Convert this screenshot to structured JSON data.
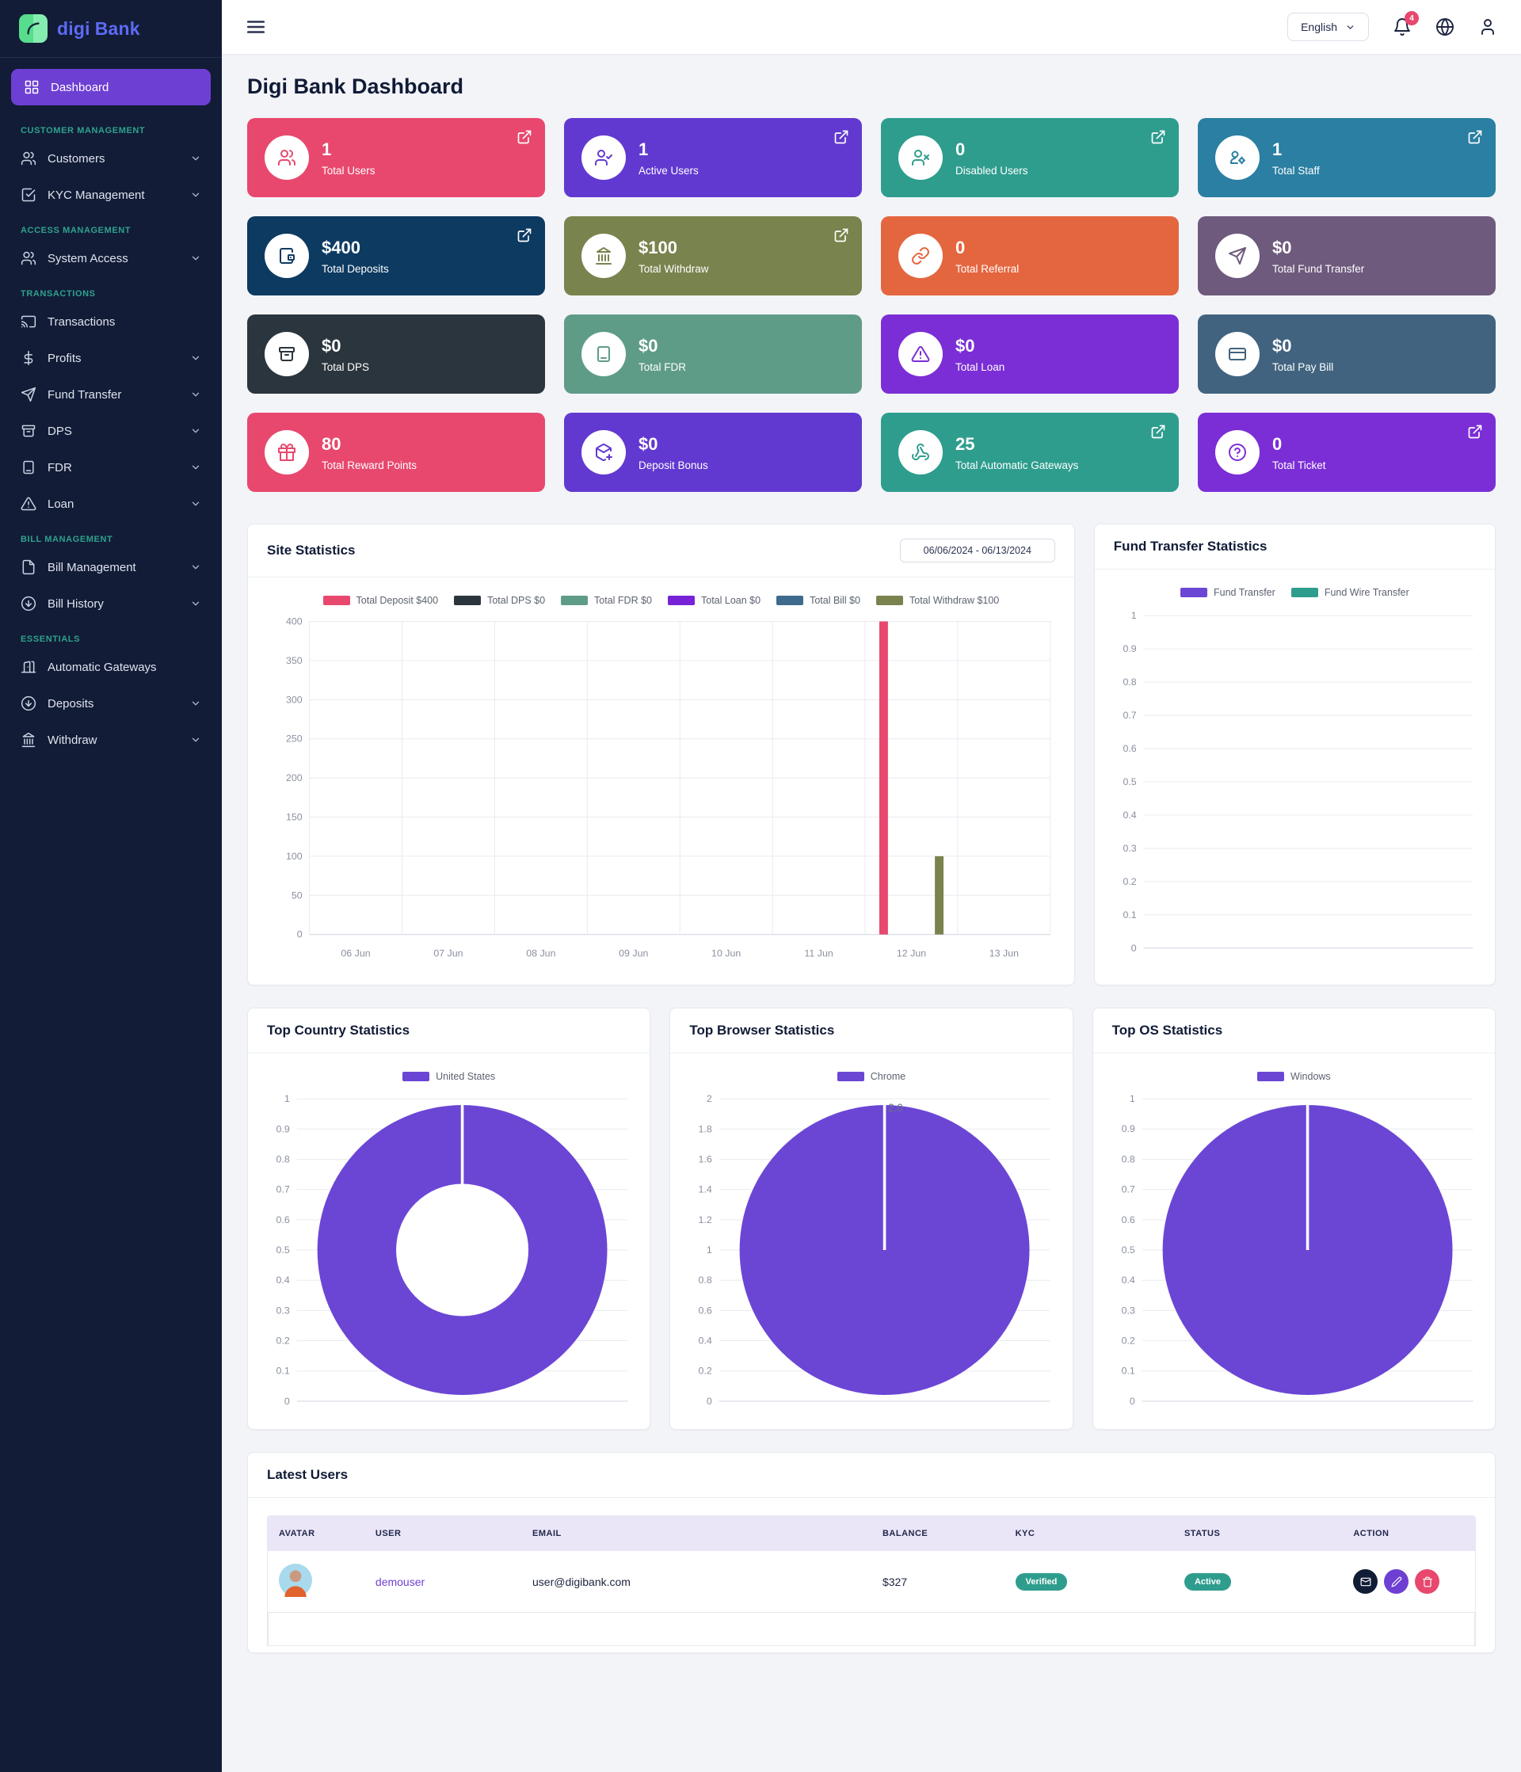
{
  "brand": {
    "logo_light": "digi",
    "logo_bold": "Bank"
  },
  "header": {
    "language_selector": "English",
    "notification_badge": "4"
  },
  "sidebar": {
    "dashboard_label": "Dashboard",
    "sections": [
      {
        "label": "CUSTOMER MANAGEMENT",
        "items": [
          {
            "label": "Customers"
          },
          {
            "label": "KYC Management"
          }
        ]
      },
      {
        "label": "ACCESS MANAGEMENT",
        "items": [
          {
            "label": "System Access"
          }
        ]
      },
      {
        "label": "TRANSACTIONS",
        "items": [
          {
            "label": "Transactions"
          },
          {
            "label": "Profits"
          },
          {
            "label": "Fund Transfer"
          },
          {
            "label": "DPS"
          },
          {
            "label": "FDR"
          },
          {
            "label": "Loan"
          }
        ]
      },
      {
        "label": "BILL MANAGEMENT",
        "items": [
          {
            "label": "Bill Management"
          },
          {
            "label": "Bill History"
          }
        ]
      },
      {
        "label": "ESSENTIALS",
        "items": [
          {
            "label": "Automatic Gateways"
          },
          {
            "label": "Deposits"
          },
          {
            "label": "Withdraw"
          }
        ]
      }
    ]
  },
  "page": {
    "title": "Digi Bank Dashboard"
  },
  "stat_cards": [
    {
      "value": "1",
      "label": "Total Users",
      "color": "#e8486e",
      "icon": "users"
    },
    {
      "value": "1",
      "label": "Active Users",
      "color": "#6239d0",
      "icon": "user-check"
    },
    {
      "value": "0",
      "label": "Disabled Users",
      "color": "#2e9d8e",
      "icon": "user-x"
    },
    {
      "value": "1",
      "label": "Total Staff",
      "color": "#2a7fa2",
      "icon": "user-cog"
    },
    {
      "value": "$400",
      "label": "Total Deposits",
      "color": "#0d3a61",
      "icon": "wallet"
    },
    {
      "value": "$100",
      "label": "Total Withdraw",
      "color": "#79834d",
      "icon": "bank"
    },
    {
      "value": "0",
      "label": "Total Referral",
      "color": "#e4663f",
      "icon": "link"
    },
    {
      "value": "$0",
      "label": "Total Fund Transfer",
      "color": "#6e5a7d",
      "icon": "send"
    },
    {
      "value": "$0",
      "label": "Total DPS",
      "color": "#2b353d",
      "icon": "archive"
    },
    {
      "value": "$0",
      "label": "Total FDR",
      "color": "#5f9c88",
      "icon": "tablet"
    },
    {
      "value": "$0",
      "label": "Total Loan",
      "color": "#7b2ed6",
      "icon": "alert-triangle"
    },
    {
      "value": "$0",
      "label": "Total Pay Bill",
      "color": "#41637f",
      "icon": "credit-card"
    },
    {
      "value": "80",
      "label": "Total Reward Points",
      "color": "#e8486e",
      "icon": "gift"
    },
    {
      "value": "$0",
      "label": "Deposit Bonus",
      "color": "#6239d0",
      "icon": "package-plus"
    },
    {
      "value": "25",
      "label": "Total Automatic Gateways",
      "color": "#2e9d8e",
      "icon": "webhook"
    },
    {
      "value": "0",
      "label": "Total Ticket",
      "color": "#7b2ed6",
      "icon": "help-circle"
    }
  ],
  "site_statistics": {
    "title": "Site Statistics",
    "date_range": "06/06/2024 - 06/13/2024"
  },
  "fund_transfer_statistics": {
    "title": "Fund Transfer Statistics"
  },
  "top_country": {
    "title": "Top Country Statistics"
  },
  "top_browser": {
    "title": "Top Browser Statistics"
  },
  "top_os": {
    "title": "Top OS Statistics"
  },
  "latest_users": {
    "title": "Latest Users",
    "columns": [
      "AVATAR",
      "USER",
      "EMAIL",
      "BALANCE",
      "KYC",
      "STATUS",
      "ACTION"
    ],
    "rows": [
      {
        "username": "demouser",
        "email": "user@digibank.com",
        "balance": "$327",
        "kyc_badge": "Verified",
        "status_badge": "Active"
      }
    ]
  },
  "chart_data": [
    {
      "id": "site-statistics",
      "type": "bar",
      "title": "Site Statistics",
      "date_range": "06/06/2024 - 06/13/2024",
      "legend_position": "top",
      "grid": true,
      "x": [
        "06 Jun",
        "07 Jun",
        "08 Jun",
        "09 Jun",
        "10 Jun",
        "11 Jun",
        "12 Jun",
        "13 Jun"
      ],
      "yticks": [
        "0",
        "50",
        "100",
        "150",
        "200",
        "250",
        "300",
        "350",
        "400"
      ],
      "ylim": [
        0,
        400
      ],
      "series": [
        {
          "name": "Total Deposit $400",
          "color": "#e8486e",
          "values": [
            0,
            0,
            0,
            0,
            0,
            0,
            400,
            0
          ]
        },
        {
          "name": "Total DPS $0",
          "color": "#2b353d",
          "values": [
            0,
            0,
            0,
            0,
            0,
            0,
            0,
            0
          ]
        },
        {
          "name": "Total FDR $0",
          "color": "#5f9c88",
          "values": [
            0,
            0,
            0,
            0,
            0,
            0,
            0,
            0
          ]
        },
        {
          "name": "Total Loan $0",
          "color": "#7722d6",
          "values": [
            0,
            0,
            0,
            0,
            0,
            0,
            0,
            0
          ]
        },
        {
          "name": "Total Bill $0",
          "color": "#3e6a8e",
          "values": [
            0,
            0,
            0,
            0,
            0,
            0,
            0,
            0
          ]
        },
        {
          "name": "Total Withdraw $100",
          "color": "#79834d",
          "values": [
            0,
            0,
            0,
            0,
            0,
            0,
            100,
            0
          ]
        }
      ]
    },
    {
      "id": "fund-transfer-statistics",
      "type": "bar",
      "title": "Fund Transfer Statistics",
      "legend_position": "top",
      "grid": true,
      "yticks": [
        "0",
        "0.1",
        "0.2",
        "0.3",
        "0.4",
        "0.5",
        "0.6",
        "0.7",
        "0.8",
        "0.9",
        "1"
      ],
      "ylim": [
        0,
        1
      ],
      "series": [
        {
          "name": "Fund Transfer",
          "color": "#6b46d5",
          "values": []
        },
        {
          "name": "Fund Wire Transfer",
          "color": "#2e9d8e",
          "values": []
        }
      ]
    },
    {
      "id": "top-country-statistics",
      "type": "doughnut",
      "title": "Top Country Statistics",
      "legend_position": "top",
      "labels": [
        "United States"
      ],
      "values": [
        1
      ],
      "color": "#6b46d5",
      "yticks": [
        "0",
        "0.1",
        "0.2",
        "0.3",
        "0.4",
        "0.5",
        "0.6",
        "0.7",
        "0.8",
        "0.9",
        "1"
      ],
      "ylim": [
        0,
        1
      ]
    },
    {
      "id": "top-browser-statistics",
      "type": "pie",
      "title": "Top Browser Statistics",
      "legend_position": "top",
      "labels": [
        "Chrome"
      ],
      "values": [
        2
      ],
      "value_label": "2.0",
      "color": "#6b46d5",
      "yticks": [
        "0",
        "0.2",
        "0.4",
        "0.6",
        "0.8",
        "1",
        "1.2",
        "1.4",
        "1.6",
        "1.8",
        "2"
      ],
      "ylim": [
        0,
        2
      ]
    },
    {
      "id": "top-os-statistics",
      "type": "pie",
      "title": "Top OS Statistics",
      "legend_position": "top",
      "labels": [
        "Windows"
      ],
      "values": [
        1
      ],
      "color": "#6b46d5",
      "yticks": [
        "0",
        "0.1",
        "0.2",
        "0.3",
        "0.4",
        "0.5",
        "0.6",
        "0.7",
        "0.8",
        "0.9",
        "1"
      ],
      "ylim": [
        0,
        1
      ]
    }
  ]
}
